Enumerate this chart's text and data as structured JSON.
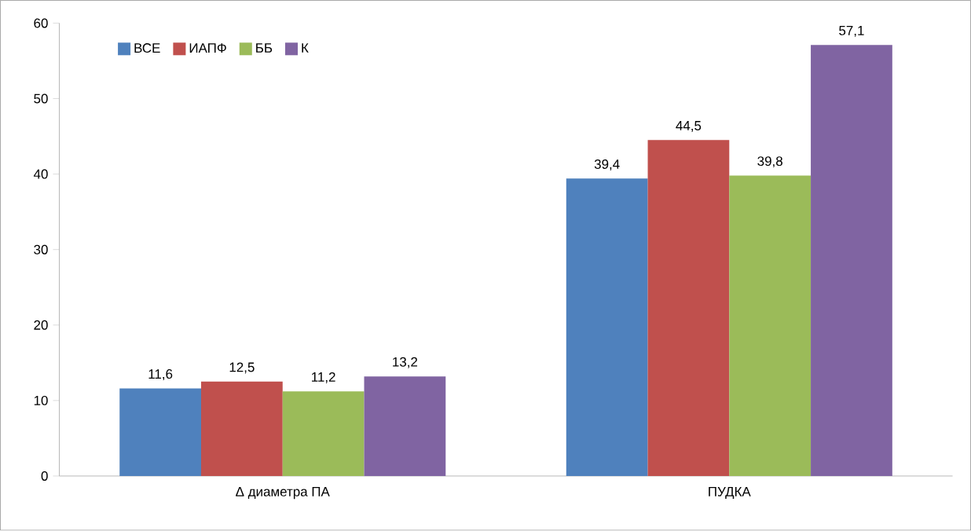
{
  "chart_data": {
    "type": "bar",
    "categories": [
      "Δ диаметра ПА",
      "ПУДКА"
    ],
    "series": [
      {
        "name": "ВСЕ",
        "color": "#4f81bd",
        "values": [
          11.6,
          39.4
        ],
        "value_labels": [
          "11,6",
          "39,4"
        ]
      },
      {
        "name": "ИАПФ",
        "color": "#c0504d",
        "values": [
          12.5,
          44.5
        ],
        "value_labels": [
          "12,5",
          "44,5"
        ]
      },
      {
        "name": "ББ",
        "color": "#9bbb59",
        "values": [
          11.2,
          39.8
        ],
        "value_labels": [
          "11,2",
          "39,8"
        ]
      },
      {
        "name": "К",
        "color": "#8064a2",
        "values": [
          13.2,
          57.1
        ],
        "value_labels": [
          "13,2",
          "57,1"
        ]
      }
    ],
    "ylim": [
      0,
      60
    ],
    "yticks": [
      0,
      10,
      20,
      30,
      40,
      50,
      60
    ],
    "legend": "top left"
  }
}
